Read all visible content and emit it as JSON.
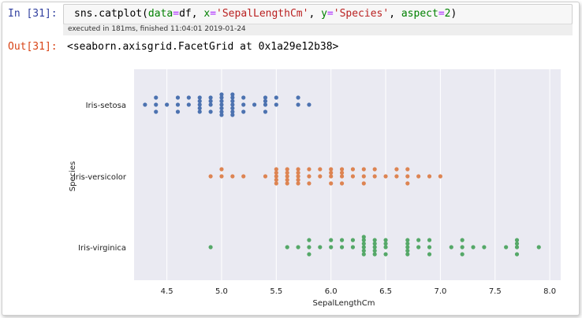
{
  "cell": {
    "in_prompt": "In [31]:",
    "code": {
      "p1": "sns.catplot(",
      "k1": "data",
      "e1": "=",
      "v1": "df, ",
      "k2": "x",
      "e2": "=",
      "s2": "'SepalLengthCm'",
      "c2": ", ",
      "k3": "y",
      "e3": "=",
      "s3": "'Species'",
      "c3": ", ",
      "k4": "aspect",
      "e4": "=",
      "n4": "2",
      "end": ")"
    },
    "exec_info": "executed in 181ms, finished 11:04:01 2019-01-24",
    "out_prompt": "Out[31]:",
    "output_text": "<seaborn.axisgrid.FacetGrid at 0x1a29e12b38>"
  },
  "chart_data": {
    "type": "scatter",
    "title": "",
    "xlabel": "SepalLengthCm",
    "ylabel": "Species",
    "xlim": [
      4.2,
      8.1
    ],
    "xticks": [
      4.5,
      5.0,
      5.5,
      6.0,
      6.5,
      7.0,
      7.5,
      8.0
    ],
    "xtick_labels": [
      "4.5",
      "5.0",
      "5.5",
      "6.0",
      "6.5",
      "7.0",
      "7.5",
      "8.0"
    ],
    "grid": true,
    "categories": [
      "Iris-setosa",
      "Iris-versicolor",
      "Iris-virginica"
    ],
    "series": [
      {
        "color": "#4c72b0",
        "x": [
          4.3,
          4.4,
          4.4,
          4.4,
          4.5,
          4.6,
          4.6,
          4.6,
          4.7,
          4.7,
          4.8,
          4.8,
          4.8,
          4.8,
          4.8,
          4.9,
          4.9,
          4.9,
          4.9,
          5.0,
          5.0,
          5.0,
          5.0,
          5.0,
          5.0,
          5.0,
          5.1,
          5.1,
          5.1,
          5.1,
          5.1,
          5.1,
          5.1,
          5.2,
          5.2,
          5.2,
          5.3,
          5.4,
          5.4,
          5.4,
          5.4,
          5.5,
          5.5,
          5.7,
          5.7,
          5.8
        ]
      },
      {
        "color": "#dd8452",
        "x": [
          4.9,
          5.0,
          5.0,
          5.1,
          5.2,
          5.4,
          5.5,
          5.5,
          5.5,
          5.5,
          5.5,
          5.6,
          5.6,
          5.6,
          5.6,
          5.6,
          5.7,
          5.7,
          5.7,
          5.7,
          5.7,
          5.8,
          5.8,
          5.8,
          5.9,
          5.9,
          6.0,
          6.0,
          6.0,
          6.0,
          6.1,
          6.1,
          6.1,
          6.1,
          6.2,
          6.2,
          6.3,
          6.3,
          6.3,
          6.4,
          6.4,
          6.5,
          6.6,
          6.6,
          6.7,
          6.7,
          6.7,
          6.8,
          6.9,
          7.0
        ]
      },
      {
        "color": "#55a868",
        "x": [
          4.9,
          5.6,
          5.7,
          5.8,
          5.8,
          5.8,
          5.9,
          6.0,
          6.0,
          6.1,
          6.1,
          6.2,
          6.2,
          6.3,
          6.3,
          6.3,
          6.3,
          6.3,
          6.3,
          6.4,
          6.4,
          6.4,
          6.4,
          6.4,
          6.5,
          6.5,
          6.5,
          6.5,
          6.7,
          6.7,
          6.7,
          6.7,
          6.7,
          6.8,
          6.8,
          6.9,
          6.9,
          6.9,
          7.1,
          7.2,
          7.2,
          7.2,
          7.3,
          7.4,
          7.6,
          7.7,
          7.7,
          7.7,
          7.7,
          7.9
        ]
      }
    ]
  }
}
